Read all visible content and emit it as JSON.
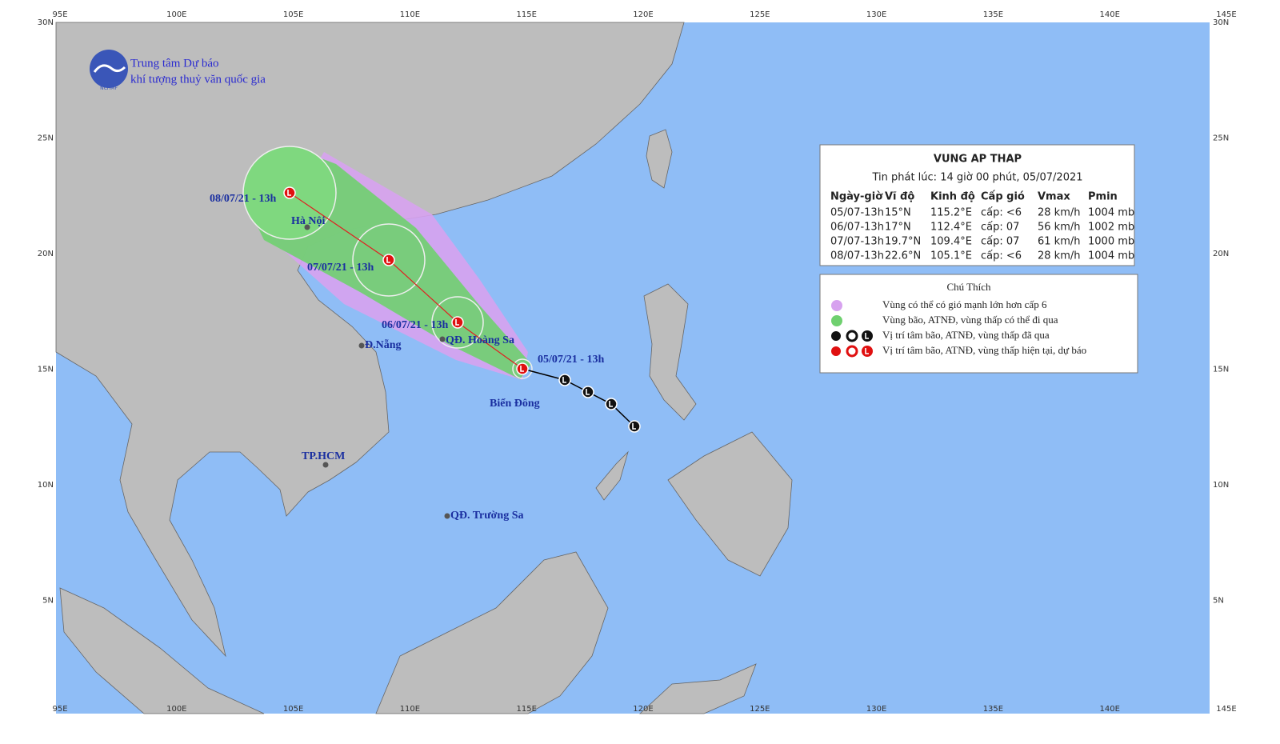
{
  "header": {
    "org_line1": "Trung tâm Dự báo",
    "org_line2": "khí tượng thuỷ văn quốc gia",
    "logo_text": "NCHMF"
  },
  "axes": {
    "longitude_labels": [
      "95E",
      "100E",
      "105E",
      "110E",
      "115E",
      "120E",
      "125E",
      "130E",
      "135E",
      "140E",
      "145E"
    ],
    "latitude_labels": [
      "30N",
      "25N",
      "20N",
      "15N",
      "10N",
      "5N"
    ]
  },
  "places": [
    "Hà Nội",
    "Đ.Nẵng",
    "QĐ. Hoàng Sa",
    "TP.HCM",
    "QĐ. Trường Sa",
    "Biển Đông"
  ],
  "track_labels": [
    "05/07/21 - 13h",
    "06/07/21 - 13h",
    "07/07/21 - 13h",
    "08/07/21 - 13h"
  ],
  "info_box": {
    "title": "VUNG AP THAP",
    "issued": "Tin phát lúc: 14 giờ 00 phút, 05/07/2021",
    "columns": [
      "Ngày-giờ",
      "Vĩ độ",
      "Kinh độ",
      "Cấp gió",
      "Vmax",
      "Pmin"
    ],
    "rows": [
      [
        "05/07-13h",
        "15°N",
        "115.2°E",
        "cấp: <6",
        "28 km/h",
        "1004 mb"
      ],
      [
        "06/07-13h",
        "17°N",
        "112.4°E",
        "cấp: 07",
        "56 km/h",
        "1002 mb"
      ],
      [
        "07/07-13h",
        "19.7°N",
        "109.4°E",
        "cấp: 07",
        "61 km/h",
        "1000 mb"
      ],
      [
        "08/07-13h",
        "22.6°N",
        "105.1°E",
        "cấp: <6",
        "28 km/h",
        "1004 mb"
      ]
    ]
  },
  "legend": {
    "title": "Chú Thích",
    "items": [
      "Vùng có thể có gió mạnh lớn hơn cấp 6",
      "Vùng bão, ATNĐ, vùng thấp có thể đi qua",
      "Vị trí tâm bão, ATNĐ, vùng thấp đã qua",
      "Vị trí tâm bão, ATNĐ, vùng thấp hiện tại, dự báo"
    ]
  }
}
